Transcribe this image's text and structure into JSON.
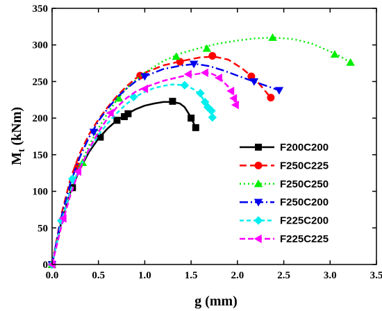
{
  "chart_data": {
    "type": "line",
    "xlabel": "g (mm)",
    "ylabel_main": "M",
    "ylabel_sub": "t",
    "ylabel_rest": " (kNm)",
    "xlim": [
      0,
      3.5
    ],
    "ylim": [
      0,
      350
    ],
    "xticks": [
      0.0,
      0.5,
      1.0,
      1.5,
      2.0,
      2.5,
      3.0,
      3.5
    ],
    "xtick_labels": [
      "0.0",
      "0.5",
      "1.0",
      "1.5",
      "2.0",
      "2.5",
      "3.0",
      "3.5"
    ],
    "yticks": [
      0,
      50,
      100,
      150,
      200,
      250,
      300,
      350
    ],
    "ytick_labels": [
      "0",
      "50",
      "100",
      "150",
      "200",
      "250",
      "300",
      "350"
    ],
    "grid": false,
    "legend_position": "right",
    "series": [
      {
        "name": "F200C200",
        "color": "#000000",
        "dash": "solid",
        "marker": "square",
        "points": [
          [
            0,
            0
          ],
          [
            0.22,
            105
          ],
          [
            0.52,
            174
          ],
          [
            0.7,
            197
          ],
          [
            0.78,
            202
          ],
          [
            0.82,
            206
          ],
          [
            1.3,
            223
          ],
          [
            1.5,
            200
          ],
          [
            1.55,
            187
          ]
        ],
        "curve": [
          [
            0,
            0
          ],
          [
            0.1,
            58
          ],
          [
            0.2,
            100
          ],
          [
            0.3,
            130
          ],
          [
            0.4,
            154
          ],
          [
            0.5,
            172
          ],
          [
            0.6,
            186
          ],
          [
            0.7,
            197
          ],
          [
            0.8,
            205
          ],
          [
            0.9,
            212
          ],
          [
            1.0,
            217
          ],
          [
            1.1,
            220
          ],
          [
            1.2,
            222
          ],
          [
            1.3,
            222
          ],
          [
            1.38,
            220
          ],
          [
            1.43,
            215
          ],
          [
            1.48,
            205
          ],
          [
            1.52,
            195
          ],
          [
            1.55,
            187
          ]
        ]
      },
      {
        "name": "F250C225",
        "color": "#ff0000",
        "dash": "10,5",
        "marker": "circle",
        "points": [
          [
            0,
            0
          ],
          [
            0.28,
            134
          ],
          [
            0.95,
            258
          ],
          [
            1.38,
            277
          ],
          [
            1.73,
            285
          ],
          [
            2.15,
            257
          ],
          [
            2.36,
            228
          ]
        ],
        "curve": [
          [
            0,
            0
          ],
          [
            0.1,
            68
          ],
          [
            0.2,
            118
          ],
          [
            0.3,
            152
          ],
          [
            0.4,
            178
          ],
          [
            0.5,
            198
          ],
          [
            0.6,
            215
          ],
          [
            0.7,
            230
          ],
          [
            0.8,
            243
          ],
          [
            0.9,
            254
          ],
          [
            1.0,
            262
          ],
          [
            1.2,
            272
          ],
          [
            1.4,
            278
          ],
          [
            1.6,
            283
          ],
          [
            1.75,
            284
          ],
          [
            1.9,
            280
          ],
          [
            2.05,
            268
          ],
          [
            2.2,
            252
          ],
          [
            2.36,
            228
          ]
        ]
      },
      {
        "name": "F250C250",
        "color": "#00ee00",
        "dash": "2,4",
        "marker": "triangle-up",
        "points": [
          [
            0,
            0
          ],
          [
            0.33,
            139
          ],
          [
            0.72,
            227
          ],
          [
            1.34,
            284
          ],
          [
            1.67,
            295
          ],
          [
            2.38,
            310
          ],
          [
            3.05,
            287
          ],
          [
            3.22,
            276
          ]
        ],
        "curve": [
          [
            0,
            0
          ],
          [
            0.1,
            56
          ],
          [
            0.2,
            100
          ],
          [
            0.3,
            135
          ],
          [
            0.4,
            163
          ],
          [
            0.5,
            186
          ],
          [
            0.6,
            207
          ],
          [
            0.7,
            225
          ],
          [
            0.8,
            240
          ],
          [
            0.9,
            252
          ],
          [
            1.0,
            262
          ],
          [
            1.2,
            278
          ],
          [
            1.4,
            289
          ],
          [
            1.6,
            296
          ],
          [
            1.8,
            302
          ],
          [
            2.0,
            306
          ],
          [
            2.2,
            309
          ],
          [
            2.4,
            310
          ],
          [
            2.6,
            308
          ],
          [
            2.8,
            302
          ],
          [
            3.0,
            291
          ],
          [
            3.1,
            285
          ],
          [
            3.22,
            276
          ]
        ]
      },
      {
        "name": "F250C200",
        "color": "#0000ee",
        "dash": "12,4,2,4",
        "marker": "triangle-down",
        "points": [
          [
            0,
            0
          ],
          [
            0.45,
            181
          ],
          [
            1.0,
            257
          ],
          [
            1.53,
            274
          ],
          [
            2.18,
            250
          ],
          [
            2.45,
            238
          ]
        ],
        "curve": [
          [
            0,
            0
          ],
          [
            0.1,
            65
          ],
          [
            0.2,
            112
          ],
          [
            0.3,
            147
          ],
          [
            0.4,
            174
          ],
          [
            0.5,
            196
          ],
          [
            0.6,
            213
          ],
          [
            0.7,
            228
          ],
          [
            0.8,
            240
          ],
          [
            0.9,
            250
          ],
          [
            1.0,
            257
          ],
          [
            1.2,
            267
          ],
          [
            1.4,
            272
          ],
          [
            1.55,
            274
          ],
          [
            1.7,
            271
          ],
          [
            1.85,
            265
          ],
          [
            2.0,
            258
          ],
          [
            2.2,
            249
          ],
          [
            2.45,
            238
          ]
        ]
      },
      {
        "name": "F225C200",
        "color": "#00eeee",
        "dash": "6,4",
        "marker": "diamond",
        "points": [
          [
            0,
            0
          ],
          [
            0.1,
            60
          ],
          [
            0.22,
            117
          ],
          [
            0.88,
            229
          ],
          [
            1.43,
            245
          ],
          [
            1.6,
            234
          ],
          [
            1.65,
            222
          ],
          [
            1.68,
            215
          ],
          [
            1.72,
            210
          ],
          [
            1.73,
            201
          ]
        ],
        "curve": [
          [
            0,
            0
          ],
          [
            0.1,
            58
          ],
          [
            0.2,
            102
          ],
          [
            0.3,
            133
          ],
          [
            0.4,
            157
          ],
          [
            0.5,
            177
          ],
          [
            0.6,
            193
          ],
          [
            0.7,
            207
          ],
          [
            0.8,
            219
          ],
          [
            0.9,
            229
          ],
          [
            1.0,
            236
          ],
          [
            1.1,
            241
          ],
          [
            1.2,
            244
          ],
          [
            1.3,
            246
          ],
          [
            1.43,
            245
          ],
          [
            1.52,
            240
          ],
          [
            1.6,
            232
          ],
          [
            1.65,
            222
          ],
          [
            1.7,
            210
          ],
          [
            1.73,
            201
          ]
        ]
      },
      {
        "name": "F225C225",
        "color": "#ff00ff",
        "dash": "8,4",
        "marker": "triangle-left",
        "points": [
          [
            0,
            0
          ],
          [
            0.12,
            63
          ],
          [
            0.28,
            127
          ],
          [
            0.63,
            207
          ],
          [
            1.0,
            240
          ],
          [
            1.47,
            260
          ],
          [
            1.65,
            262
          ],
          [
            1.8,
            255
          ],
          [
            1.93,
            237
          ],
          [
            1.96,
            227
          ],
          [
            1.98,
            218
          ]
        ],
        "curve": [
          [
            0,
            0
          ],
          [
            0.1,
            52
          ],
          [
            0.2,
            96
          ],
          [
            0.3,
            131
          ],
          [
            0.4,
            158
          ],
          [
            0.5,
            181
          ],
          [
            0.6,
            200
          ],
          [
            0.7,
            215
          ],
          [
            0.8,
            227
          ],
          [
            0.9,
            236
          ],
          [
            1.0,
            242
          ],
          [
            1.2,
            251
          ],
          [
            1.4,
            257
          ],
          [
            1.6,
            261
          ],
          [
            1.7,
            262
          ],
          [
            1.8,
            256
          ],
          [
            1.9,
            243
          ],
          [
            1.95,
            232
          ],
          [
            1.98,
            218
          ]
        ]
      }
    ]
  }
}
